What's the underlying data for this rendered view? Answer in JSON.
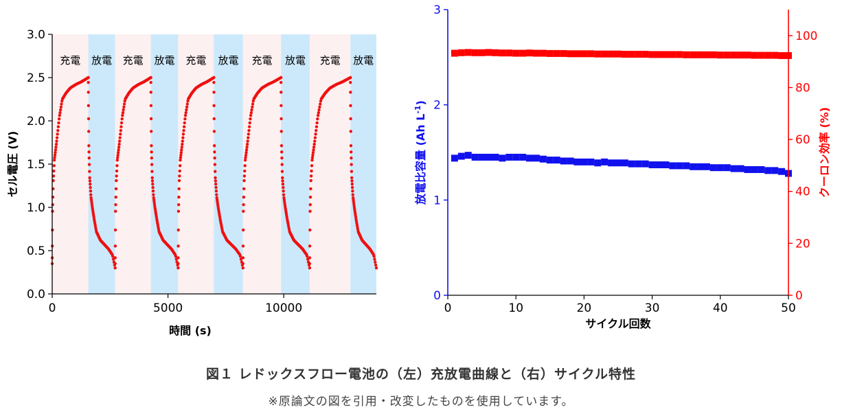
{
  "colors": {
    "charge_bg": "#fdf0f0",
    "discharge_bg": "#cce9fb",
    "voltage": "#ee1111",
    "capacity": "#1111ee",
    "efficiency": "#ff0000",
    "axis": "#000000"
  },
  "chart_data": [
    {
      "type": "scatter",
      "panel": "left",
      "xlabel": "時間 (s)",
      "ylabel": "セル電圧 (V)",
      "xlim": [
        0,
        14000
      ],
      "ylim": [
        0,
        3.0
      ],
      "xticks": [
        0,
        5000,
        10000
      ],
      "yticks": [
        0.0,
        0.5,
        1.0,
        1.5,
        2.0,
        2.5,
        3.0
      ],
      "ytick_labels": [
        "0.0",
        "0.5",
        "1.0",
        "1.5",
        "2.0",
        "2.5",
        "3.0"
      ],
      "phase_labels": {
        "charge": "充電",
        "discharge": "放電"
      },
      "phases": [
        {
          "type": "charge",
          "start": 0,
          "end": 1560
        },
        {
          "type": "discharge",
          "start": 1560,
          "end": 2720
        },
        {
          "type": "charge",
          "start": 2720,
          "end": 4260
        },
        {
          "type": "discharge",
          "start": 4260,
          "end": 5440
        },
        {
          "type": "charge",
          "start": 5440,
          "end": 6980
        },
        {
          "type": "discharge",
          "start": 6980,
          "end": 8240
        },
        {
          "type": "charge",
          "start": 8240,
          "end": 9880
        },
        {
          "type": "discharge",
          "start": 9880,
          "end": 11120
        },
        {
          "type": "charge",
          "start": 11120,
          "end": 12880
        },
        {
          "type": "discharge",
          "start": 12880,
          "end": 14000
        }
      ],
      "profile": {
        "charge_frac": [
          0,
          0.01,
          0.03,
          0.06,
          0.12,
          0.2,
          0.28,
          0.38,
          0.5,
          0.65,
          0.8,
          0.92,
          1.0
        ],
        "charge_v": [
          0.35,
          0.95,
          1.3,
          1.55,
          1.75,
          2.05,
          2.25,
          2.32,
          2.38,
          2.42,
          2.45,
          2.48,
          2.5
        ],
        "discharge_frac": [
          0,
          0.008,
          0.02,
          0.05,
          0.1,
          0.15,
          0.22,
          0.3,
          0.45,
          0.6,
          0.75,
          0.9,
          1.0
        ],
        "discharge_v": [
          2.5,
          2.1,
          1.7,
          1.35,
          1.12,
          1.0,
          0.86,
          0.72,
          0.62,
          0.57,
          0.52,
          0.45,
          0.3
        ]
      }
    },
    {
      "type": "scatter",
      "panel": "right",
      "xlabel": "サイクル回数",
      "ylabel_left": "放電比容量 (Ah L",
      "ylabel_left_sup": "-1",
      "ylabel_left_tail": ")",
      "ylabel_right": "クーロン効率 (%)",
      "xlim": [
        0,
        50
      ],
      "ylim_left": [
        0,
        3
      ],
      "ylim_right": [
        0,
        110
      ],
      "xticks": [
        0,
        10,
        20,
        30,
        40,
        50
      ],
      "yticks_left": [
        0,
        1,
        2,
        3
      ],
      "yticks_right": [
        0,
        20,
        40,
        60,
        80,
        100
      ],
      "series": [
        {
          "axis": "right",
          "x": [
            1,
            2,
            3,
            4,
            5,
            6,
            7,
            8,
            9,
            10,
            11,
            12,
            13,
            14,
            15,
            16,
            17,
            18,
            19,
            20,
            21,
            22,
            23,
            24,
            25,
            26,
            27,
            28,
            29,
            30,
            31,
            32,
            33,
            34,
            35,
            36,
            37,
            38,
            39,
            40,
            41,
            42,
            43,
            44,
            45,
            46,
            47,
            48,
            49,
            50
          ],
          "values": [
            93.2,
            93.4,
            93.5,
            93.4,
            93.4,
            93.5,
            93.4,
            93.3,
            93.3,
            93.2,
            93.2,
            93.3,
            93.2,
            93.2,
            93.1,
            93.1,
            93.1,
            93.0,
            93.0,
            93.0,
            93.0,
            92.9,
            92.9,
            92.9,
            92.9,
            92.8,
            92.8,
            92.8,
            92.8,
            92.7,
            92.7,
            92.7,
            92.7,
            92.7,
            92.6,
            92.6,
            92.6,
            92.6,
            92.6,
            92.5,
            92.5,
            92.5,
            92.5,
            92.5,
            92.4,
            92.4,
            92.4,
            92.4,
            92.3,
            92.3
          ]
        },
        {
          "axis": "left",
          "x": [
            1,
            2,
            3,
            4,
            5,
            6,
            7,
            8,
            9,
            10,
            11,
            12,
            13,
            14,
            15,
            16,
            17,
            18,
            19,
            20,
            21,
            22,
            23,
            24,
            25,
            26,
            27,
            28,
            29,
            30,
            31,
            32,
            33,
            34,
            35,
            36,
            37,
            38,
            39,
            40,
            41,
            42,
            43,
            44,
            45,
            46,
            47,
            48,
            49,
            50
          ],
          "values": [
            1.44,
            1.46,
            1.47,
            1.45,
            1.45,
            1.45,
            1.45,
            1.44,
            1.45,
            1.45,
            1.45,
            1.44,
            1.44,
            1.43,
            1.42,
            1.42,
            1.41,
            1.41,
            1.4,
            1.4,
            1.4,
            1.39,
            1.4,
            1.39,
            1.39,
            1.39,
            1.38,
            1.38,
            1.38,
            1.37,
            1.37,
            1.37,
            1.36,
            1.36,
            1.36,
            1.35,
            1.35,
            1.35,
            1.34,
            1.34,
            1.34,
            1.33,
            1.33,
            1.32,
            1.32,
            1.32,
            1.31,
            1.31,
            1.3,
            1.28
          ]
        }
      ]
    }
  ],
  "caption": {
    "title": "図１ レドックスフロー電池の（左）充放電曲線と（右）サイクル特性",
    "note": "※原論文の図を引用・改変したものを使用しています。"
  }
}
